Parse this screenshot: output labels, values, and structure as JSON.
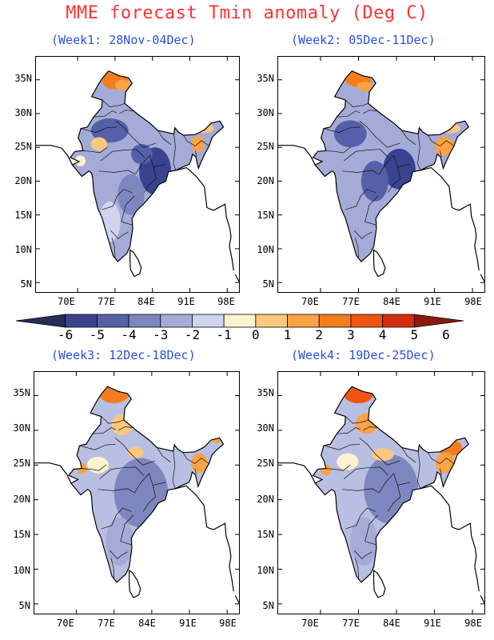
{
  "title": "MME forecast Tmin anomaly (Deg C)",
  "panels": [
    {
      "id": "week1",
      "label": "(Week1: 28Nov-04Dec)"
    },
    {
      "id": "week2",
      "label": "(Week2: 05Dec-11Dec)"
    },
    {
      "id": "week3",
      "label": "(Week3: 12Dec-18Dec)"
    },
    {
      "id": "week4",
      "label": "(Week4: 19Dec-25Dec)"
    }
  ],
  "lat_labels": [
    "35N",
    "30N",
    "25N",
    "20N",
    "15N",
    "10N",
    "5N"
  ],
  "lon_labels": [
    "70E",
    "77E",
    "84E",
    "91E",
    "98E"
  ],
  "colorbar": {
    "labels": [
      "-6",
      "-5",
      "-4",
      "-3",
      "-2",
      "-1",
      "0",
      "1",
      "2",
      "3",
      "4",
      "5",
      "6"
    ],
    "colors": [
      "#272d5a",
      "#3a4390",
      "#5560a8",
      "#7d86bf",
      "#a4abd6",
      "#cfd3ee",
      "#fdf3cf",
      "#fdc77d",
      "#f9a345",
      "#f57d1e",
      "#ee5512",
      "#d42e0f",
      "#8b1a10"
    ]
  }
}
